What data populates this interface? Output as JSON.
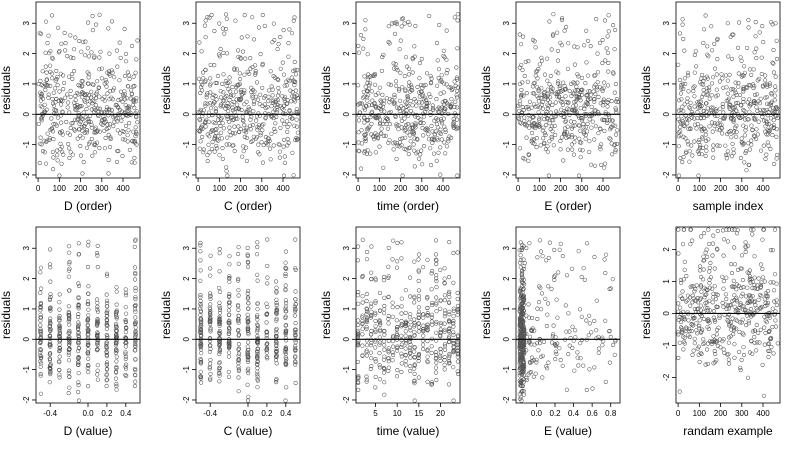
{
  "chart_data": [
    {
      "type": "scatter",
      "xlabel": "D (order)",
      "ylabel": "residuals",
      "xlim": [
        -10,
        480
      ],
      "ylim": [
        -2.1,
        3.7
      ],
      "xticks": [
        0,
        100,
        200,
        300,
        400
      ],
      "xtick_labels": [
        "0",
        "100",
        "200",
        "300",
        "400"
      ],
      "yticks": [
        -2,
        -1,
        0,
        1,
        2,
        3
      ],
      "ytick_labels": [
        "-2",
        "-1",
        "0",
        "1",
        "2",
        "3"
      ],
      "hline": 0,
      "pattern": "uniform",
      "x_range": [
        0,
        470
      ],
      "n_points": 470
    },
    {
      "type": "scatter",
      "xlabel": "C (order)",
      "ylabel": "residuals",
      "xlim": [
        -10,
        480
      ],
      "ylim": [
        -2.1,
        3.7
      ],
      "xticks": [
        0,
        100,
        200,
        300,
        400
      ],
      "xtick_labels": [
        "0",
        "100",
        "200",
        "300",
        "400"
      ],
      "yticks": [
        -2,
        -1,
        0,
        1,
        2,
        3
      ],
      "ytick_labels": [
        "-2",
        "-1",
        "0",
        "1",
        "2",
        "3"
      ],
      "hline": 0,
      "pattern": "uniform",
      "x_range": [
        0,
        470
      ],
      "n_points": 470
    },
    {
      "type": "scatter",
      "xlabel": "time (order)",
      "ylabel": "residuals",
      "xlim": [
        -10,
        480
      ],
      "ylim": [
        -2.1,
        3.7
      ],
      "xticks": [
        0,
        100,
        200,
        300,
        400
      ],
      "xtick_labels": [
        "0",
        "100",
        "200",
        "300",
        "400"
      ],
      "yticks": [
        -2,
        -1,
        0,
        1,
        2,
        3
      ],
      "ytick_labels": [
        "-2",
        "-1",
        "0",
        "1",
        "2",
        "3"
      ],
      "hline": 0,
      "pattern": "uniform",
      "x_range": [
        0,
        470
      ],
      "n_points": 470
    },
    {
      "type": "scatter",
      "xlabel": "E (order)",
      "ylabel": "residuals",
      "xlim": [
        -10,
        480
      ],
      "ylim": [
        -2.1,
        3.7
      ],
      "xticks": [
        0,
        100,
        200,
        300,
        400
      ],
      "xtick_labels": [
        "0",
        "100",
        "200",
        "300",
        "400"
      ],
      "yticks": [
        -2,
        -1,
        0,
        1,
        2,
        3
      ],
      "ytick_labels": [
        "-2",
        "-1",
        "0",
        "1",
        "2",
        "3"
      ],
      "hline": 0,
      "pattern": "uniform",
      "x_range": [
        0,
        470
      ],
      "n_points": 470
    },
    {
      "type": "scatter",
      "xlabel": "sample index",
      "ylabel": "residuals",
      "xlim": [
        -10,
        480
      ],
      "ylim": [
        -2.1,
        3.7
      ],
      "xticks": [
        0,
        100,
        200,
        300,
        400
      ],
      "xtick_labels": [
        "0",
        "100",
        "200",
        "300",
        "400"
      ],
      "yticks": [
        -2,
        -1,
        0,
        1,
        2,
        3
      ],
      "ytick_labels": [
        "-2",
        "-1",
        "0",
        "1",
        "2",
        "3"
      ],
      "hline": 0,
      "pattern": "uniform",
      "x_range": [
        0,
        470
      ],
      "n_points": 470
    },
    {
      "type": "scatter",
      "xlabel": "D (value)",
      "ylabel": "residuals",
      "xlim": [
        -0.55,
        0.55
      ],
      "ylim": [
        -2.1,
        3.7
      ],
      "xticks": [
        -0.4,
        0,
        0.2,
        0.4
      ],
      "xtick_labels": [
        "-0.4",
        "0.0",
        "0.2",
        "0.4"
      ],
      "yticks": [
        -2,
        -1,
        0,
        1,
        2,
        3
      ],
      "ytick_labels": [
        "-2",
        "-1",
        "0",
        "1",
        "2",
        "3"
      ],
      "hline": 0,
      "pattern": "columns",
      "columns": [
        -0.5,
        -0.4,
        -0.3,
        -0.2,
        -0.1,
        0.0,
        0.1,
        0.2,
        0.3,
        0.4,
        0.5
      ],
      "n_points": 470
    },
    {
      "type": "scatter",
      "xlabel": "C (value)",
      "ylabel": "residuals",
      "xlim": [
        -0.55,
        0.55
      ],
      "ylim": [
        -2.1,
        3.7
      ],
      "xticks": [
        -0.4,
        0,
        0.2,
        0.4
      ],
      "xtick_labels": [
        "-0.4",
        "0.0",
        "0.2",
        "0.4"
      ],
      "yticks": [
        -2,
        -1,
        0,
        1,
        2,
        3
      ],
      "ytick_labels": [
        "-2",
        "-1",
        "0",
        "1",
        "2",
        "3"
      ],
      "hline": 0,
      "pattern": "columns",
      "columns": [
        -0.5,
        -0.4,
        -0.3,
        -0.2,
        -0.1,
        0.0,
        0.1,
        0.2,
        0.3,
        0.4,
        0.5
      ],
      "n_points": 470
    },
    {
      "type": "scatter",
      "xlabel": "time (value)",
      "ylabel": "residuals",
      "xlim": [
        0.5,
        24.5
      ],
      "ylim": [
        -2.1,
        3.7
      ],
      "xticks": [
        5,
        10,
        15,
        20
      ],
      "xtick_labels": [
        "5",
        "10",
        "15",
        "20"
      ],
      "yticks": [
        -2,
        -1,
        0,
        1,
        2,
        3
      ],
      "ytick_labels": [
        "-2",
        "-1",
        "0",
        "1",
        "2",
        "3"
      ],
      "hline": 0,
      "pattern": "columns",
      "columns": [
        1,
        2,
        3,
        4,
        5,
        6,
        7,
        8,
        9,
        10,
        11,
        12,
        13,
        14,
        15,
        16,
        17,
        18,
        19,
        20,
        21,
        22,
        23,
        24
      ],
      "n_points": 470
    },
    {
      "type": "scatter",
      "xlabel": "E (value)",
      "ylabel": "residuals",
      "xlim": [
        -0.22,
        0.9
      ],
      "ylim": [
        -2.1,
        3.7
      ],
      "xticks": [
        0,
        0.2,
        0.4,
        0.6,
        0.8
      ],
      "xtick_labels": [
        "0.0",
        "0.2",
        "0.4",
        "0.6",
        "0.8"
      ],
      "yticks": [
        -2,
        -1,
        0,
        1,
        2,
        3
      ],
      "ytick_labels": [
        "-2",
        "-1",
        "0",
        "1",
        "2",
        "3"
      ],
      "hline": 0,
      "pattern": "skewed",
      "x_range": [
        -0.18,
        0.86
      ],
      "n_points": 470
    },
    {
      "type": "scatter",
      "xlabel": "randam example",
      "ylabel": "residuals",
      "xlim": [
        -10,
        480
      ],
      "ylim": [
        -2.8,
        2.7
      ],
      "xticks": [
        0,
        100,
        200,
        300,
        400
      ],
      "xtick_labels": [
        "0",
        "100",
        "200",
        "300",
        "400"
      ],
      "yticks": [
        -2,
        -1,
        0,
        1,
        2
      ],
      "ytick_labels": [
        "-2",
        "-1",
        "0",
        "1",
        "2"
      ],
      "hline": 0,
      "pattern": "uniform",
      "x_range": [
        0,
        470
      ],
      "n_points": 470
    }
  ]
}
